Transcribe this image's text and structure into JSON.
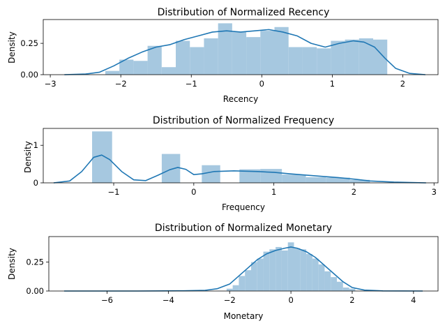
{
  "chart_data": [
    {
      "type": "bar",
      "title": "Distribution of Normalized Recency",
      "xlabel": "Recency",
      "ylabel": "Density",
      "xlim": [
        -3.1,
        2.5
      ],
      "ylim": [
        0,
        0.44
      ],
      "xticks": [
        -3,
        -2,
        -1,
        0,
        1,
        2
      ],
      "yticks": [
        0.0,
        0.25
      ],
      "ytick_labels": [
        "0.00",
        "0.25"
      ],
      "bar_color": "#a6c8e0",
      "line_color": "#1f77b4",
      "bins": [
        {
          "x0": -2.22,
          "x1": -2.02,
          "h": 0.03
        },
        {
          "x0": -2.02,
          "x1": -1.82,
          "h": 0.12
        },
        {
          "x0": -1.82,
          "x1": -1.62,
          "h": 0.11
        },
        {
          "x0": -1.62,
          "x1": -1.42,
          "h": 0.23
        },
        {
          "x0": -1.42,
          "x1": -1.22,
          "h": 0.06
        },
        {
          "x0": -1.22,
          "x1": -1.02,
          "h": 0.27
        },
        {
          "x0": -1.02,
          "x1": -0.82,
          "h": 0.22
        },
        {
          "x0": -0.82,
          "x1": -0.62,
          "h": 0.29
        },
        {
          "x0": -0.62,
          "x1": -0.42,
          "h": 0.41
        },
        {
          "x0": -0.42,
          "x1": -0.22,
          "h": 0.34
        },
        {
          "x0": -0.22,
          "x1": -0.02,
          "h": 0.3
        },
        {
          "x0": -0.02,
          "x1": 0.18,
          "h": 0.35
        },
        {
          "x0": 0.18,
          "x1": 0.38,
          "h": 0.38
        },
        {
          "x0": 0.38,
          "x1": 0.58,
          "h": 0.22
        },
        {
          "x0": 0.58,
          "x1": 0.78,
          "h": 0.22
        },
        {
          "x0": 0.78,
          "x1": 0.98,
          "h": 0.21
        },
        {
          "x0": 0.98,
          "x1": 1.18,
          "h": 0.27
        },
        {
          "x0": 1.18,
          "x1": 1.38,
          "h": 0.28
        },
        {
          "x0": 1.38,
          "x1": 1.58,
          "h": 0.29
        },
        {
          "x0": 1.58,
          "x1": 1.78,
          "h": 0.28
        }
      ],
      "kde": [
        [
          -2.8,
          0.0
        ],
        [
          -2.5,
          0.005
        ],
        [
          -2.3,
          0.02
        ],
        [
          -2.1,
          0.07
        ],
        [
          -1.9,
          0.13
        ],
        [
          -1.7,
          0.18
        ],
        [
          -1.5,
          0.22
        ],
        [
          -1.3,
          0.24
        ],
        [
          -1.1,
          0.28
        ],
        [
          -0.9,
          0.31
        ],
        [
          -0.7,
          0.34
        ],
        [
          -0.5,
          0.35
        ],
        [
          -0.3,
          0.34
        ],
        [
          -0.1,
          0.35
        ],
        [
          0.1,
          0.36
        ],
        [
          0.3,
          0.34
        ],
        [
          0.5,
          0.31
        ],
        [
          0.7,
          0.25
        ],
        [
          0.9,
          0.22
        ],
        [
          1.1,
          0.25
        ],
        [
          1.3,
          0.27
        ],
        [
          1.45,
          0.26
        ],
        [
          1.6,
          0.22
        ],
        [
          1.75,
          0.13
        ],
        [
          1.9,
          0.05
        ],
        [
          2.1,
          0.01
        ],
        [
          2.32,
          0.0
        ]
      ]
    },
    {
      "type": "bar",
      "title": "Distribution of Normalized Frequency",
      "xlabel": "Frequency",
      "ylabel": "Density",
      "xlim": [
        -1.88,
        3.05
      ],
      "ylim": [
        0,
        1.45
      ],
      "xticks": [
        -1,
        0,
        1,
        2,
        3
      ],
      "yticks": [
        0,
        1
      ],
      "ytick_labels": [
        "0",
        "1"
      ],
      "bar_color": "#a6c8e0",
      "line_color": "#1f77b4",
      "bins": [
        {
          "x0": -1.27,
          "x1": -1.02,
          "h": 1.37
        },
        {
          "x0": -0.4,
          "x1": -0.17,
          "h": 0.77
        },
        {
          "x0": 0.1,
          "x1": 0.33,
          "h": 0.47
        },
        {
          "x0": 0.57,
          "x1": 0.83,
          "h": 0.36
        },
        {
          "x0": 0.83,
          "x1": 1.1,
          "h": 0.37
        },
        {
          "x0": 1.1,
          "x1": 1.4,
          "h": 0.22
        },
        {
          "x0": 1.4,
          "x1": 1.65,
          "h": 0.15
        },
        {
          "x0": 1.65,
          "x1": 1.95,
          "h": 0.14
        },
        {
          "x0": 1.95,
          "x1": 2.2,
          "h": 0.08
        }
      ],
      "kde": [
        [
          -1.75,
          0.0
        ],
        [
          -1.55,
          0.05
        ],
        [
          -1.4,
          0.3
        ],
        [
          -1.25,
          0.68
        ],
        [
          -1.15,
          0.74
        ],
        [
          -1.05,
          0.62
        ],
        [
          -0.9,
          0.3
        ],
        [
          -0.75,
          0.08
        ],
        [
          -0.6,
          0.06
        ],
        [
          -0.45,
          0.2
        ],
        [
          -0.3,
          0.35
        ],
        [
          -0.2,
          0.41
        ],
        [
          -0.1,
          0.36
        ],
        [
          0.0,
          0.22
        ],
        [
          0.1,
          0.24
        ],
        [
          0.25,
          0.3
        ],
        [
          0.5,
          0.32
        ],
        [
          0.8,
          0.3
        ],
        [
          1.0,
          0.28
        ],
        [
          1.2,
          0.24
        ],
        [
          1.5,
          0.19
        ],
        [
          1.8,
          0.14
        ],
        [
          2.0,
          0.1
        ],
        [
          2.2,
          0.05
        ],
        [
          2.5,
          0.02
        ],
        [
          2.9,
          0.0
        ]
      ]
    },
    {
      "type": "bar",
      "title": "Distribution of Normalized Monetary",
      "xlabel": "Monetary",
      "ylabel": "Density",
      "xlim": [
        -7.9,
        4.8
      ],
      "ylim": [
        0,
        0.47
      ],
      "xticks": [
        -6,
        -4,
        -2,
        0,
        2,
        4
      ],
      "yticks": [
        0.0,
        0.25
      ],
      "ytick_labels": [
        "0.00",
        "0.25"
      ],
      "bar_color": "#a6c8e0",
      "line_color": "#1f77b4",
      "bins": [
        {
          "x0": -2.1,
          "x1": -1.9,
          "h": 0.02
        },
        {
          "x0": -1.9,
          "x1": -1.7,
          "h": 0.05
        },
        {
          "x0": -1.7,
          "x1": -1.5,
          "h": 0.13
        },
        {
          "x0": -1.5,
          "x1": -1.3,
          "h": 0.18
        },
        {
          "x0": -1.3,
          "x1": -1.1,
          "h": 0.25
        },
        {
          "x0": -1.1,
          "x1": -0.9,
          "h": 0.28
        },
        {
          "x0": -0.9,
          "x1": -0.7,
          "h": 0.34
        },
        {
          "x0": -0.7,
          "x1": -0.5,
          "h": 0.36
        },
        {
          "x0": -0.5,
          "x1": -0.3,
          "h": 0.38
        },
        {
          "x0": -0.3,
          "x1": -0.1,
          "h": 0.35
        },
        {
          "x0": -0.1,
          "x1": 0.1,
          "h": 0.42
        },
        {
          "x0": 0.1,
          "x1": 0.3,
          "h": 0.37
        },
        {
          "x0": 0.3,
          "x1": 0.5,
          "h": 0.36
        },
        {
          "x0": 0.5,
          "x1": 0.7,
          "h": 0.32
        },
        {
          "x0": 0.7,
          "x1": 0.9,
          "h": 0.28
        },
        {
          "x0": 0.9,
          "x1": 1.1,
          "h": 0.23
        },
        {
          "x0": 1.1,
          "x1": 1.3,
          "h": 0.17
        },
        {
          "x0": 1.3,
          "x1": 1.5,
          "h": 0.12
        },
        {
          "x0": 1.5,
          "x1": 1.7,
          "h": 0.08
        },
        {
          "x0": 1.7,
          "x1": 1.9,
          "h": 0.03
        },
        {
          "x0": 1.9,
          "x1": 2.1,
          "h": 0.02
        }
      ],
      "kde": [
        [
          -7.4,
          0.0
        ],
        [
          -5.0,
          0.0
        ],
        [
          -3.5,
          0.002
        ],
        [
          -2.8,
          0.006
        ],
        [
          -2.4,
          0.02
        ],
        [
          -2.0,
          0.06
        ],
        [
          -1.7,
          0.13
        ],
        [
          -1.4,
          0.2
        ],
        [
          -1.1,
          0.27
        ],
        [
          -0.8,
          0.32
        ],
        [
          -0.5,
          0.35
        ],
        [
          -0.2,
          0.37
        ],
        [
          0.0,
          0.38
        ],
        [
          0.2,
          0.37
        ],
        [
          0.5,
          0.34
        ],
        [
          0.8,
          0.29
        ],
        [
          1.1,
          0.22
        ],
        [
          1.4,
          0.15
        ],
        [
          1.7,
          0.08
        ],
        [
          2.0,
          0.03
        ],
        [
          2.4,
          0.008
        ],
        [
          3.0,
          0.001
        ],
        [
          4.3,
          0.0
        ]
      ]
    }
  ]
}
